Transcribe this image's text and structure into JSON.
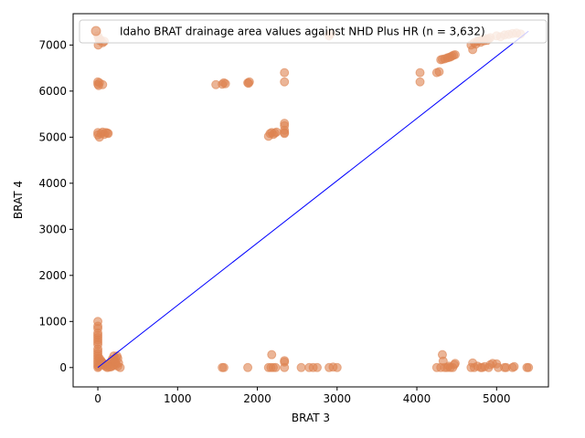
{
  "chart_data": {
    "type": "scatter",
    "title": "",
    "xlabel": "BRAT 3",
    "ylabel": "BRAT 4",
    "xlim": [
      -310,
      5650
    ],
    "ylim": [
      -420,
      7680
    ],
    "xticks": [
      0,
      1000,
      2000,
      3000,
      4000,
      5000
    ],
    "yticks": [
      0,
      1000,
      2000,
      3000,
      4000,
      5000,
      6000,
      7000
    ],
    "grid": false,
    "legend_position": "top-right",
    "series": [
      {
        "name": "Idaho BRAT drainage area values against NHD Plus HR (n = 3,632)",
        "color": "#dd8452",
        "points": [
          [
            0,
            7200
          ],
          [
            10,
            7150
          ],
          [
            20,
            7100
          ],
          [
            5,
            7000
          ],
          [
            60,
            7050
          ],
          [
            80,
            7080
          ],
          [
            30,
            7120
          ],
          [
            0,
            6200
          ],
          [
            0,
            6150
          ],
          [
            20,
            6180
          ],
          [
            60,
            6140
          ],
          [
            10,
            6120
          ],
          [
            0,
            5100
          ],
          [
            0,
            5050
          ],
          [
            20,
            5000
          ],
          [
            40,
            5080
          ],
          [
            80,
            5060
          ],
          [
            100,
            5100
          ],
          [
            120,
            5090
          ],
          [
            60,
            5110
          ],
          [
            130,
            5080
          ],
          [
            0,
            1000
          ],
          [
            0,
            900
          ],
          [
            0,
            850
          ],
          [
            0,
            750
          ],
          [
            0,
            700
          ],
          [
            0,
            650
          ],
          [
            0,
            600
          ],
          [
            0,
            550
          ],
          [
            0,
            500
          ],
          [
            0,
            400
          ],
          [
            0,
            350
          ],
          [
            0,
            300
          ],
          [
            0,
            250
          ],
          [
            0,
            200
          ],
          [
            0,
            150
          ],
          [
            0,
            100
          ],
          [
            0,
            50
          ],
          [
            0,
            0
          ],
          [
            20,
            200
          ],
          [
            40,
            150
          ],
          [
            60,
            100
          ],
          [
            80,
            50
          ],
          [
            100,
            20
          ],
          [
            120,
            0
          ],
          [
            140,
            80
          ],
          [
            160,
            120
          ],
          [
            180,
            60
          ],
          [
            200,
            150
          ],
          [
            220,
            200
          ],
          [
            240,
            250
          ],
          [
            260,
            100
          ],
          [
            280,
            0
          ],
          [
            250,
            30
          ],
          [
            230,
            60
          ],
          [
            210,
            80
          ],
          [
            190,
            40
          ],
          [
            170,
            20
          ],
          [
            150,
            10
          ],
          [
            130,
            30
          ],
          [
            110,
            50
          ],
          [
            90,
            70
          ],
          [
            70,
            90
          ],
          [
            50,
            120
          ],
          [
            30,
            60
          ],
          [
            10,
            20
          ],
          [
            200,
            250
          ],
          [
            250,
            200
          ],
          [
            180,
            180
          ],
          [
            220,
            120
          ],
          [
            1480,
            6140
          ],
          [
            1560,
            6150
          ],
          [
            1580,
            6180
          ],
          [
            1600,
            6160
          ],
          [
            1880,
            6180
          ],
          [
            1900,
            6200
          ],
          [
            1890,
            6170
          ],
          [
            2140,
            5020
          ],
          [
            2160,
            5080
          ],
          [
            2180,
            5100
          ],
          [
            2200,
            5060
          ],
          [
            2220,
            5090
          ],
          [
            2240,
            5110
          ],
          [
            2340,
            5300
          ],
          [
            2340,
            5250
          ],
          [
            2340,
            5150
          ],
          [
            2340,
            5100
          ],
          [
            2340,
            5080
          ],
          [
            2340,
            6400
          ],
          [
            2340,
            6200
          ],
          [
            2900,
            7200
          ],
          [
            2920,
            7250
          ],
          [
            4040,
            6400
          ],
          [
            4040,
            6200
          ],
          [
            4250,
            6400
          ],
          [
            4280,
            6420
          ],
          [
            4300,
            6680
          ],
          [
            4320,
            6690
          ],
          [
            4350,
            6700
          ],
          [
            4380,
            6720
          ],
          [
            4400,
            6730
          ],
          [
            4420,
            6740
          ],
          [
            4440,
            6760
          ],
          [
            4460,
            6780
          ],
          [
            4480,
            6790
          ],
          [
            4680,
            7000
          ],
          [
            4700,
            6900
          ],
          [
            4720,
            7050
          ],
          [
            4740,
            7020
          ],
          [
            4760,
            7080
          ],
          [
            4780,
            7100
          ],
          [
            4800,
            7060
          ],
          [
            4820,
            7120
          ],
          [
            4840,
            7090
          ],
          [
            4860,
            7140
          ],
          [
            4880,
            7100
          ],
          [
            4900,
            7130
          ],
          [
            4920,
            7160
          ],
          [
            5000,
            7200
          ],
          [
            5050,
            7180
          ],
          [
            5100,
            7220
          ],
          [
            5150,
            7230
          ],
          [
            5200,
            7250
          ],
          [
            5250,
            7260
          ],
          [
            5300,
            7240
          ],
          [
            1560,
            0
          ],
          [
            1580,
            0
          ],
          [
            1880,
            0
          ],
          [
            2140,
            0
          ],
          [
            2170,
            0
          ],
          [
            2200,
            0
          ],
          [
            2230,
            0
          ],
          [
            2180,
            280
          ],
          [
            2340,
            0
          ],
          [
            2340,
            150
          ],
          [
            2340,
            120
          ],
          [
            2550,
            0
          ],
          [
            2650,
            0
          ],
          [
            2700,
            0
          ],
          [
            2750,
            0
          ],
          [
            2900,
            0
          ],
          [
            2950,
            10
          ],
          [
            3000,
            0
          ],
          [
            4250,
            0
          ],
          [
            4300,
            0
          ],
          [
            4320,
            280
          ],
          [
            4330,
            140
          ],
          [
            4350,
            0
          ],
          [
            4380,
            0
          ],
          [
            4400,
            30
          ],
          [
            4420,
            0
          ],
          [
            4450,
            0
          ],
          [
            4470,
            60
          ],
          [
            4480,
            90
          ],
          [
            4680,
            0
          ],
          [
            4700,
            100
          ],
          [
            4720,
            0
          ],
          [
            4760,
            30
          ],
          [
            4800,
            0
          ],
          [
            4820,
            0
          ],
          [
            4850,
            20
          ],
          [
            4900,
            0
          ],
          [
            4920,
            60
          ],
          [
            4950,
            90
          ],
          [
            5000,
            80
          ],
          [
            5020,
            0
          ],
          [
            5100,
            0
          ],
          [
            5120,
            0
          ],
          [
            5200,
            0
          ],
          [
            5220,
            20
          ],
          [
            5380,
            0
          ],
          [
            5400,
            0
          ]
        ]
      },
      {
        "name": "",
        "type": "line",
        "color": "#0000ff",
        "points": [
          [
            0,
            0
          ],
          [
            5400,
            7300
          ]
        ]
      }
    ]
  }
}
